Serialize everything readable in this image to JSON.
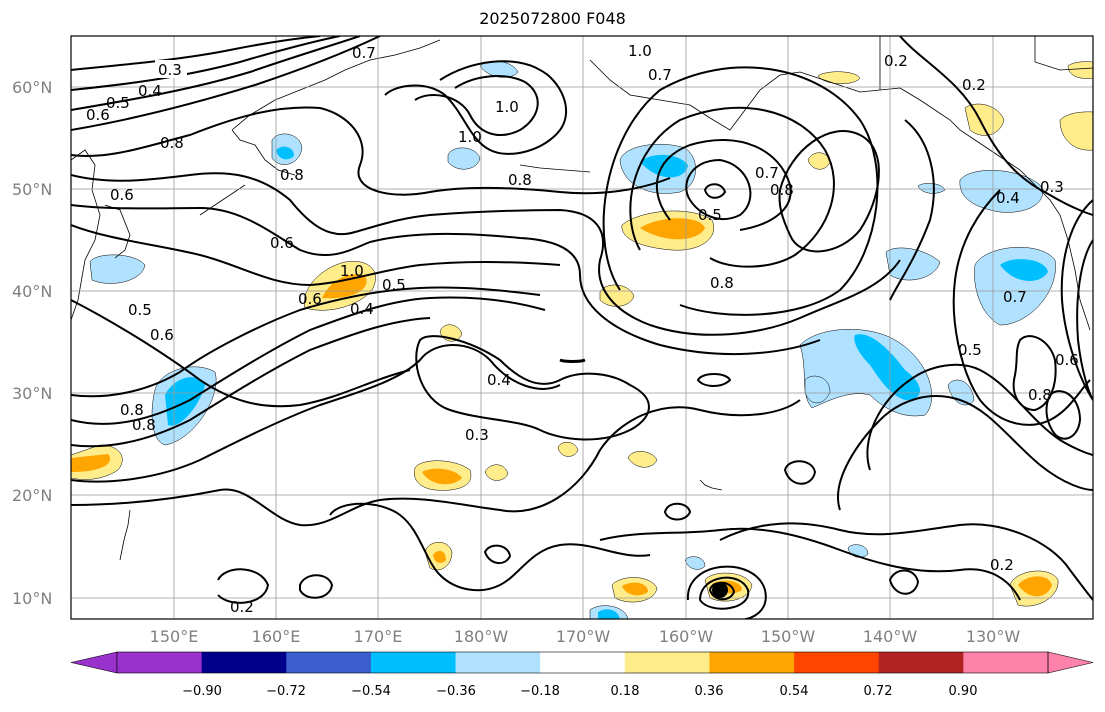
{
  "title": "2025072800 F048",
  "lat_labels": [
    "60°N",
    "50°N",
    "40°N",
    "30°N",
    "20°N",
    "10°N"
  ],
  "lon_labels": [
    "150°E",
    "160°E",
    "170°E",
    "180°W",
    "170°W",
    "160°W",
    "150°W",
    "140°W",
    "130°W"
  ],
  "contour_labels": [
    "0.3",
    "0.4",
    "0.5",
    "0.6",
    "0.8",
    "0.7",
    "1.0",
    "1.0",
    "0.7",
    "0.2",
    "0.2",
    "1.0",
    "0.8",
    "0.8",
    "0.6",
    "0.6",
    "1.0",
    "0.6",
    "0.4",
    "0.5",
    "0.8",
    "0.5",
    "0.7",
    "0.8",
    "0.4",
    "0.5",
    "0.7",
    "0.8",
    "0.4",
    "0.3",
    "0.5",
    "0.6",
    "0.8",
    "0.6",
    "0.8",
    "0.2",
    "0.2",
    "0.3"
  ],
  "colorbar": {
    "colors": [
      "#9932CC",
      "#9932CC",
      "#00008B",
      "#3A5FCD",
      "#00BFFF",
      "#B0E2FF",
      "#FFFFFF",
      "#FFEC8B",
      "#FFA500",
      "#FF4500",
      "#B22222",
      "#FF82AB",
      "#FF82AB"
    ],
    "tick_labels": [
      "−0.90",
      "−0.72",
      "−0.54",
      "−0.36",
      "−0.18",
      "0.18",
      "0.36",
      "0.54",
      "0.72",
      "0.90"
    ]
  },
  "style": {
    "positive_light": "#FFEC8B",
    "positive_mid": "#FFA500",
    "negative_light": "#B0E2FF",
    "negative_mid": "#00BFFF",
    "grid": "#999999"
  }
}
